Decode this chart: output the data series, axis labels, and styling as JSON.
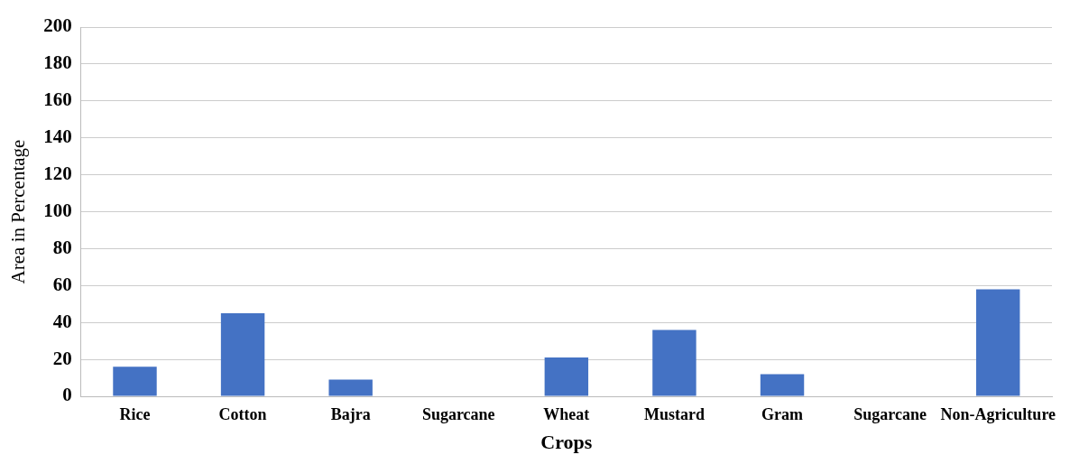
{
  "chart_data": {
    "type": "bar",
    "xlabel": "Crops",
    "ylabel": "Area in Percentage",
    "categories": [
      "Rice",
      "Cotton",
      "Bajra",
      "Sugarcane",
      "Wheat",
      "Mustard",
      "Gram",
      "Sugarcane",
      "Non-Agriculture"
    ],
    "values": [
      16,
      45,
      9,
      0,
      21,
      36,
      12,
      0,
      58
    ],
    "color": "#4472c4",
    "ylim": [
      0,
      200
    ],
    "yticks": [
      0,
      20,
      40,
      60,
      80,
      100,
      120,
      140,
      160,
      180,
      200
    ],
    "grid": "y"
  }
}
